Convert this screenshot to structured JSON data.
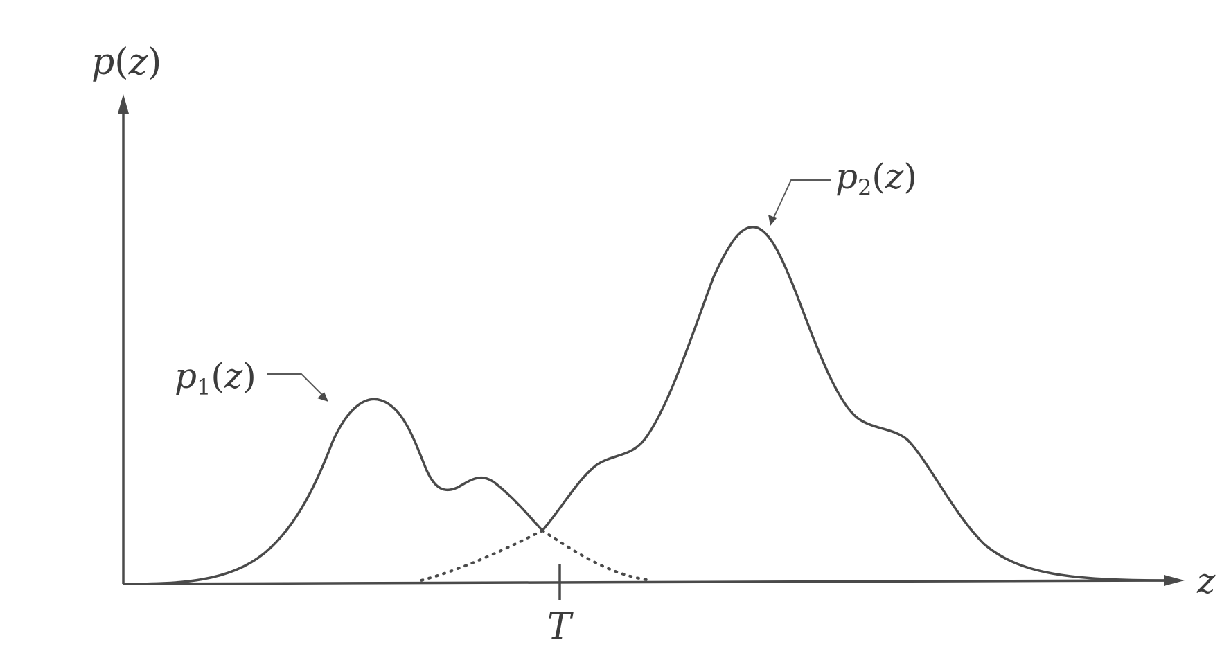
{
  "labels": {
    "y_axis": {
      "fn": "p",
      "arg": "z"
    },
    "x_axis": "z",
    "threshold": "T",
    "curve1": {
      "fn": "p",
      "sub": "1",
      "arg": "z"
    },
    "curve2": {
      "fn": "p",
      "sub": "2",
      "arg": "z"
    }
  },
  "colors": {
    "ink": "#4a4a4a",
    "background": "#ffffff"
  }
}
